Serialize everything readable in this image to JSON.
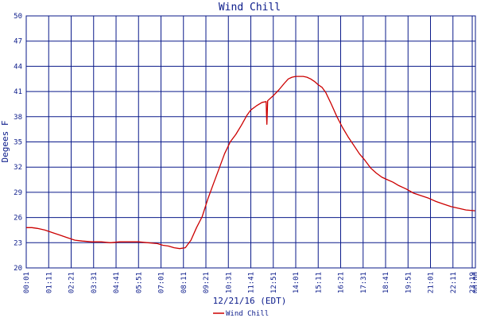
{
  "chart_data": {
    "type": "line",
    "title": "Wind Chill",
    "xlabel": "12/21/16 (EDT)",
    "ylabel": "Degees F",
    "ylim": [
      20,
      50
    ],
    "yticks": [
      "20",
      "23",
      "26",
      "29",
      "32",
      "35",
      "38",
      "41",
      "44",
      "47",
      "50"
    ],
    "xticks": [
      "00:01",
      "01:11",
      "02:21",
      "03:31",
      "04:41",
      "05:51",
      "07:01",
      "08:11",
      "09:21",
      "10:31",
      "11:41",
      "12:51",
      "14:01",
      "15:11",
      "16:21",
      "17:31",
      "18:41",
      "19:51",
      "21:01",
      "22:11",
      "00:00"
    ],
    "xtick_extra": "23:19",
    "grid": true,
    "legend": "bottom-left",
    "colors": {
      "line": "#cc0000",
      "grid": "#0a1a8a",
      "text": "#0a1a8a"
    },
    "series": [
      {
        "name": "Wind Chill",
        "x_hours": [
          0,
          0.3,
          0.6,
          1.0,
          1.4,
          1.8,
          2.2,
          2.6,
          3.0,
          3.5,
          4.0,
          4.5,
          5.0,
          5.5,
          6.0,
          6.5,
          7.0,
          7.3,
          7.6,
          7.9,
          8.2,
          8.5,
          8.8,
          9.1,
          9.4,
          9.7,
          10.0,
          10.3,
          10.6,
          10.9,
          11.2,
          11.5,
          11.8,
          12.0,
          12.3,
          12.6,
          12.82,
          12.84,
          12.86,
          12.9,
          13.2,
          13.5,
          13.8,
          14.0,
          14.2,
          14.4,
          14.6,
          14.8,
          15.0,
          15.2,
          15.4,
          15.6,
          15.8,
          16.0,
          16.3,
          16.6,
          16.9,
          17.2,
          17.5,
          17.8,
          18.1,
          18.4,
          18.7,
          19.0,
          19.3,
          19.6,
          19.9,
          20.3,
          20.7,
          21.1,
          21.5,
          21.9,
          22.3,
          22.7,
          23.1,
          23.5,
          23.98
        ],
        "values": [
          24.8,
          24.8,
          24.7,
          24.5,
          24.2,
          23.9,
          23.6,
          23.3,
          23.2,
          23.1,
          23.1,
          23.0,
          23.1,
          23.1,
          23.1,
          23.0,
          22.9,
          22.7,
          22.6,
          22.4,
          22.3,
          22.4,
          23.3,
          24.8,
          26.1,
          28.2,
          30.0,
          31.8,
          33.6,
          35.0,
          35.9,
          37.0,
          38.2,
          38.8,
          39.3,
          39.7,
          39.8,
          38.0,
          37.1,
          39.9,
          40.5,
          41.2,
          42.0,
          42.5,
          42.7,
          42.8,
          42.8,
          42.8,
          42.7,
          42.5,
          42.2,
          41.8,
          41.5,
          40.9,
          39.5,
          38.0,
          36.7,
          35.6,
          34.6,
          33.6,
          32.8,
          31.9,
          31.3,
          30.8,
          30.5,
          30.2,
          29.8,
          29.4,
          28.9,
          28.6,
          28.3,
          27.9,
          27.6,
          27.3,
          27.1,
          26.9,
          26.8
        ]
      }
    ]
  }
}
